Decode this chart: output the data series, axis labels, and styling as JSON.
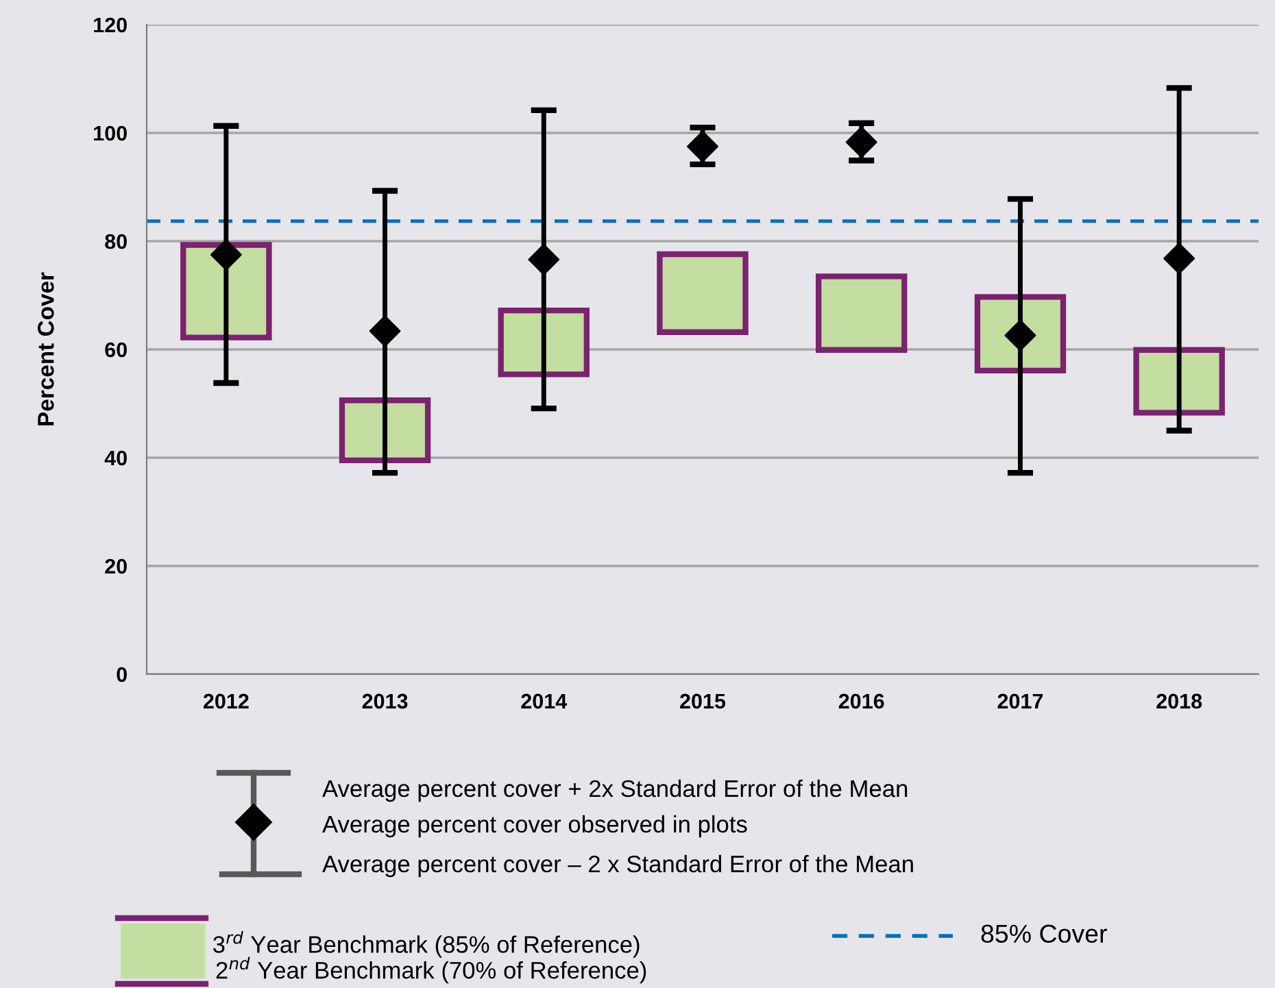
{
  "chart_data": {
    "type": "bar",
    "categories": [
      "2012",
      "2013",
      "2014",
      "2015",
      "2016",
      "2017",
      "2018"
    ],
    "ylabel": "Percent Cover",
    "ylim": [
      0,
      120
    ],
    "yticks": [
      0,
      20,
      40,
      60,
      80,
      100,
      120
    ],
    "grid": "y",
    "legend": "bottom",
    "series": [
      {
        "name": "3$^{rd}$ Year Benchmark (85% of Reference)",
        "color": "#c3dea0",
        "base": [
          62.2,
          39.5,
          55.4,
          63.2,
          59.9,
          56.1,
          48.3
        ],
        "values": [
          17.1,
          11.1,
          11.8,
          14.4,
          13.6,
          13.6,
          11.6
        ]
      },
      {
        "type": "scatter",
        "name": "Average percent cover observed in plots",
        "color": "#000000",
        "marker": "diamond",
        "values": [
          77.5,
          63.4,
          76.6,
          97.5,
          98.3,
          62.6,
          76.8
        ],
        "errors": [
          [
            53.8,
            101.3
          ],
          [
            37.2,
            89.3
          ],
          [
            49.1,
            104.2
          ],
          [
            94.2,
            101.0
          ],
          [
            94.9,
            101.8
          ],
          [
            37.2,
            87.8
          ],
          [
            45.0,
            108.3
          ]
        ]
      }
    ],
    "ref_lines": [
      {
        "axis": "y",
        "value": 83.7,
        "label": "85% Cover",
        "color": "#0070c0",
        "line_style": "dashed"
      }
    ],
    "annotations": [
      "Average percent cover + 2x Standard Error of the Mean",
      "Average percent cover – 2 x Standard Error of the Mean",
      "2$^{nd}$ Year Benchmark (70% of Reference)"
    ]
  }
}
